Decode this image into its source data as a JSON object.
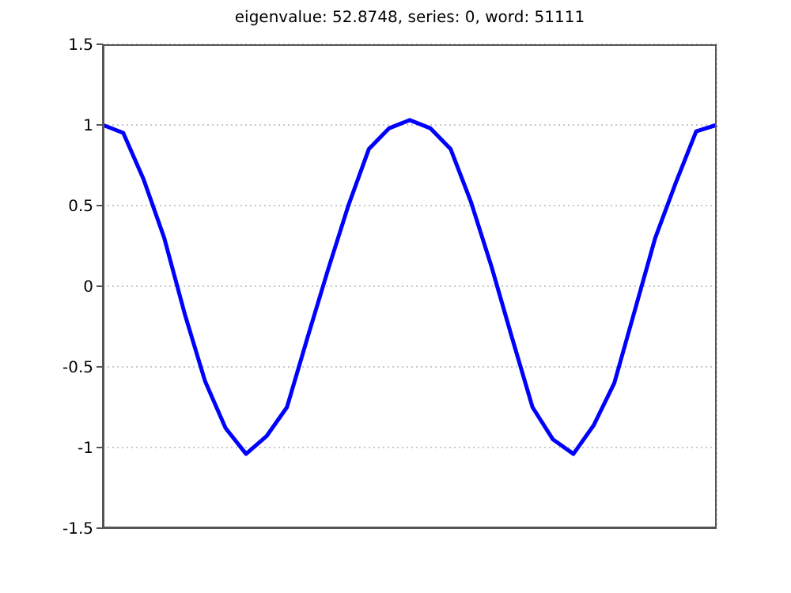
{
  "chart_data": {
    "type": "line",
    "title": "eigenvalue: 52.8748, series: 0, word: 51111",
    "categories": [
      null,
      null,
      null,
      null,
      null,
      null,
      null,
      null,
      null,
      null,
      null,
      null,
      null,
      null,
      null,
      null,
      null,
      null,
      null,
      null,
      null,
      null,
      null,
      null,
      null,
      null,
      null,
      null,
      null,
      null,
      null
    ],
    "series": [
      {
        "color": "#0000ff",
        "values": [
          1.0,
          0.95,
          0.66,
          0.3,
          -0.17,
          -0.59,
          -0.88,
          -1.04,
          -0.93,
          -0.75,
          -0.32,
          0.1,
          0.5,
          0.85,
          0.98,
          1.03,
          0.98,
          0.85,
          0.52,
          0.12,
          -0.32,
          -0.75,
          -0.95,
          -1.04,
          -0.86,
          -0.6,
          -0.15,
          0.3,
          0.64,
          0.96,
          1.0
        ]
      }
    ],
    "ylim": [
      -1.5,
      1.5
    ],
    "yticks": [
      -1.5,
      -1,
      -0.5,
      0,
      0.5,
      1,
      1.5
    ],
    "grid": true,
    "tick_labels": "y",
    "marker": "none",
    "line_style": "solid"
  }
}
